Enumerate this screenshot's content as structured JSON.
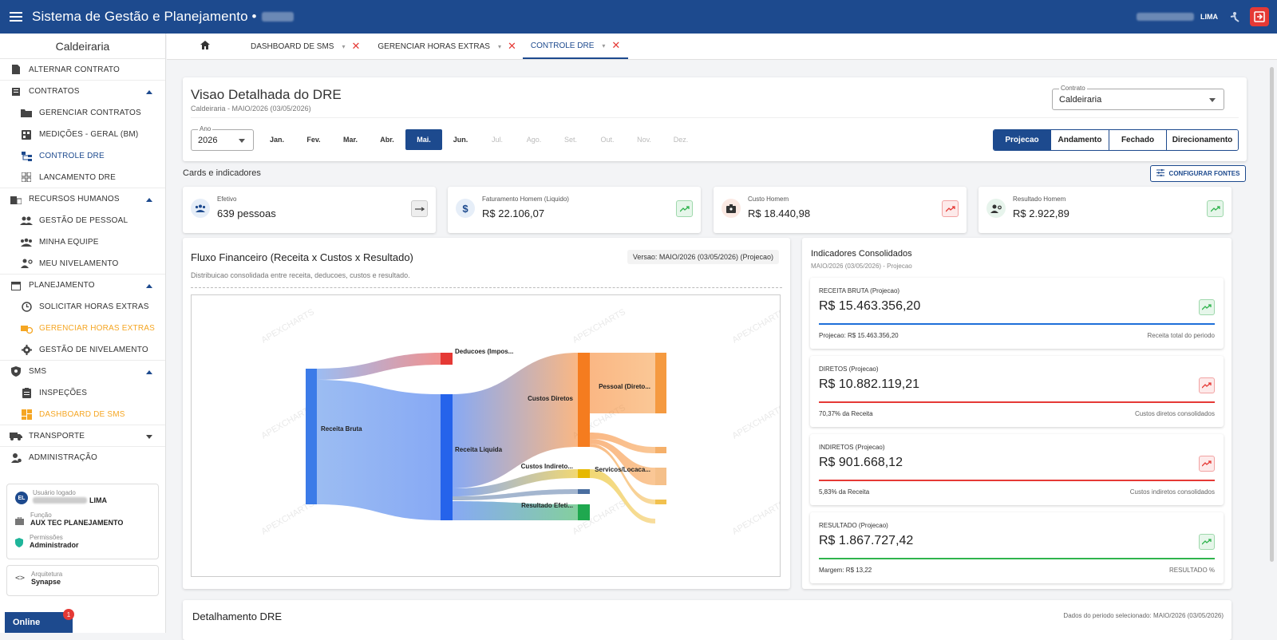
{
  "app": {
    "title": "Sistema de Gestão e Planejamento •",
    "user_short": "LIMA"
  },
  "tabs": [
    {
      "label": "DASHBOARD DE SMS"
    },
    {
      "label": "GERENCIAR HORAS EXTRAS"
    },
    {
      "label": "CONTROLE DRE"
    }
  ],
  "sidebar": {
    "header": "Caldeiraria",
    "items": [
      {
        "label": "ALTERNAR CONTRATO"
      },
      {
        "label": "CONTRATOS"
      },
      {
        "label": "GERENCIAR CONTRATOS"
      },
      {
        "label": "MEDIÇÕES - GERAL (BM)"
      },
      {
        "label": "CONTROLE DRE"
      },
      {
        "label": "LANCAMENTO DRE"
      },
      {
        "label": "RECURSOS HUMANOS"
      },
      {
        "label": "GESTÃO DE PESSOAL"
      },
      {
        "label": "MINHA EQUIPE"
      },
      {
        "label": "MEU NIVELAMENTO"
      },
      {
        "label": "PLANEJAMENTO"
      },
      {
        "label": "SOLICITAR HORAS EXTRAS"
      },
      {
        "label": "GERENCIAR HORAS EXTRAS"
      },
      {
        "label": "GESTÃO DE NIVELAMENTO"
      },
      {
        "label": "SMS"
      },
      {
        "label": "INSPEÇÕES"
      },
      {
        "label": "DASHBOARD DE SMS"
      },
      {
        "label": "TRANSPORTE"
      },
      {
        "label": "ADMINISTRAÇÃO"
      }
    ],
    "user": {
      "avatar": "EL",
      "logged_label": "Usuário logado",
      "logged_value": "LIMA",
      "role_label": "Função",
      "role_value": "AUX TEC PLANEJAMENTO",
      "perm_label": "Permissões",
      "perm_value": "Administrador"
    },
    "arch": {
      "label": "Arquitetura",
      "value": "Synapse"
    },
    "online": "Online",
    "badge": "1"
  },
  "header": {
    "title": "Visao Detalhada do DRE",
    "subtitle": "Caldeiraria - MAIO/2026 (03/05/2026)",
    "contract_label": "Contrato",
    "contract_value": "Caldeiraria",
    "year_label": "Ano",
    "year_value": "2026",
    "months": [
      "Jan.",
      "Fev.",
      "Mar.",
      "Abr.",
      "Mai.",
      "Jun.",
      "Jul.",
      "Ago.",
      "Set.",
      "Out.",
      "Nov.",
      "Dez."
    ],
    "selected_month": "Mai.",
    "modes": [
      "Projecao",
      "Andamento",
      "Fechado",
      "Direcionamento"
    ],
    "selected_mode": "Projecao"
  },
  "cards_section": {
    "label": "Cards e indicadores",
    "config_button": "CONFIGURAR FONTES"
  },
  "kpis": [
    {
      "label": "Efetivo",
      "value": "639 pessoas",
      "icon": "people-icon",
      "trend": "flat"
    },
    {
      "label": "Faturamento Homem (Liquido)",
      "value": "R$ 22.106,07",
      "icon": "dollar-icon",
      "trend": "up"
    },
    {
      "label": "Custo Homem",
      "value": "R$ 18.440,98",
      "icon": "badge-icon",
      "trend": "up-red"
    },
    {
      "label": "Resultado Homem",
      "value": "R$ 2.922,89",
      "icon": "person-settings-icon",
      "trend": "up"
    }
  ],
  "flow": {
    "title": "Fluxo Financeiro (Receita x Custos x Resultado)",
    "subtitle": "Distribuicao consolidada entre receita, deducoes, custos e resultado.",
    "version": "Versao: MAIO/2026 (03/05/2026) (Projecao)",
    "watermark": "APEXCHARTS",
    "nodes": {
      "receita_bruta": "Receita Bruta",
      "deducoes": "Deducoes (Impos...",
      "receita_liquida": "Receita Liquida",
      "custos_diretos": "Custos Diretos",
      "custos_indiretos": "Custos Indireto...",
      "resultado": "Resultado Efeti...",
      "pessoal": "Pessoal (Direto...",
      "servicos": "Servicos/Locaca..."
    }
  },
  "chart_data": {
    "type": "sankey",
    "nodes": [
      "Receita Bruta",
      "Deducoes (Impos...",
      "Receita Liquida",
      "Custos Diretos",
      "Custos Indireto...",
      "Resultado Efeti...",
      "Pessoal (Direto...",
      "Servicos/Locaca..."
    ],
    "links": [
      {
        "source": "Receita Bruta",
        "target": "Deducoes (Impos...",
        "value": 0.8
      },
      {
        "source": "Receita Bruta",
        "target": "Receita Liquida",
        "value": 14.66
      },
      {
        "source": "Receita Liquida",
        "target": "Custos Diretos",
        "value": 10.88
      },
      {
        "source": "Receita Liquida",
        "target": "Custos Indireto...",
        "value": 0.9
      },
      {
        "source": "Receita Liquida",
        "target": "Resultado Efeti...",
        "value": 1.87
      },
      {
        "source": "Custos Diretos",
        "target": "Pessoal (Direto...",
        "value": 7.0
      }
    ]
  },
  "indicators": {
    "title": "Indicadores Consolidados",
    "subtitle": "MAIO/2026 (03/05/2026) - Projecao",
    "cards": [
      {
        "label": "RECEITA BRUTA (Projecao)",
        "value": "R$ 15.463.356,20",
        "foot_left": "Projecao: R$ 15.463.356,20",
        "foot_right": "Receita total do periodo",
        "color": "#1e6fd9",
        "trend": "green"
      },
      {
        "label": "DIRETOS (Projecao)",
        "value": "R$ 10.882.119,21",
        "foot_left": "70,37% da Receita",
        "foot_right": "Custos diretos consolidados",
        "color": "#e53935",
        "trend": "red"
      },
      {
        "label": "INDIRETOS (Projecao)",
        "value": "R$ 901.668,12",
        "foot_left": "5,83% da Receita",
        "foot_right": "Custos indiretos consolidados",
        "color": "#e53935",
        "trend": "red"
      },
      {
        "label": "RESULTADO (Projecao)",
        "value": "R$ 1.867.727,42",
        "foot_left": "Margem: R$ 13,22",
        "foot_right": "RESULTADO %",
        "color": "#2fb44d",
        "trend": "green"
      }
    ]
  },
  "detail": {
    "title": "Detalhamento DRE",
    "right": "Dados do periodo selecionado: MAIO/2026 (03/05/2026)"
  }
}
